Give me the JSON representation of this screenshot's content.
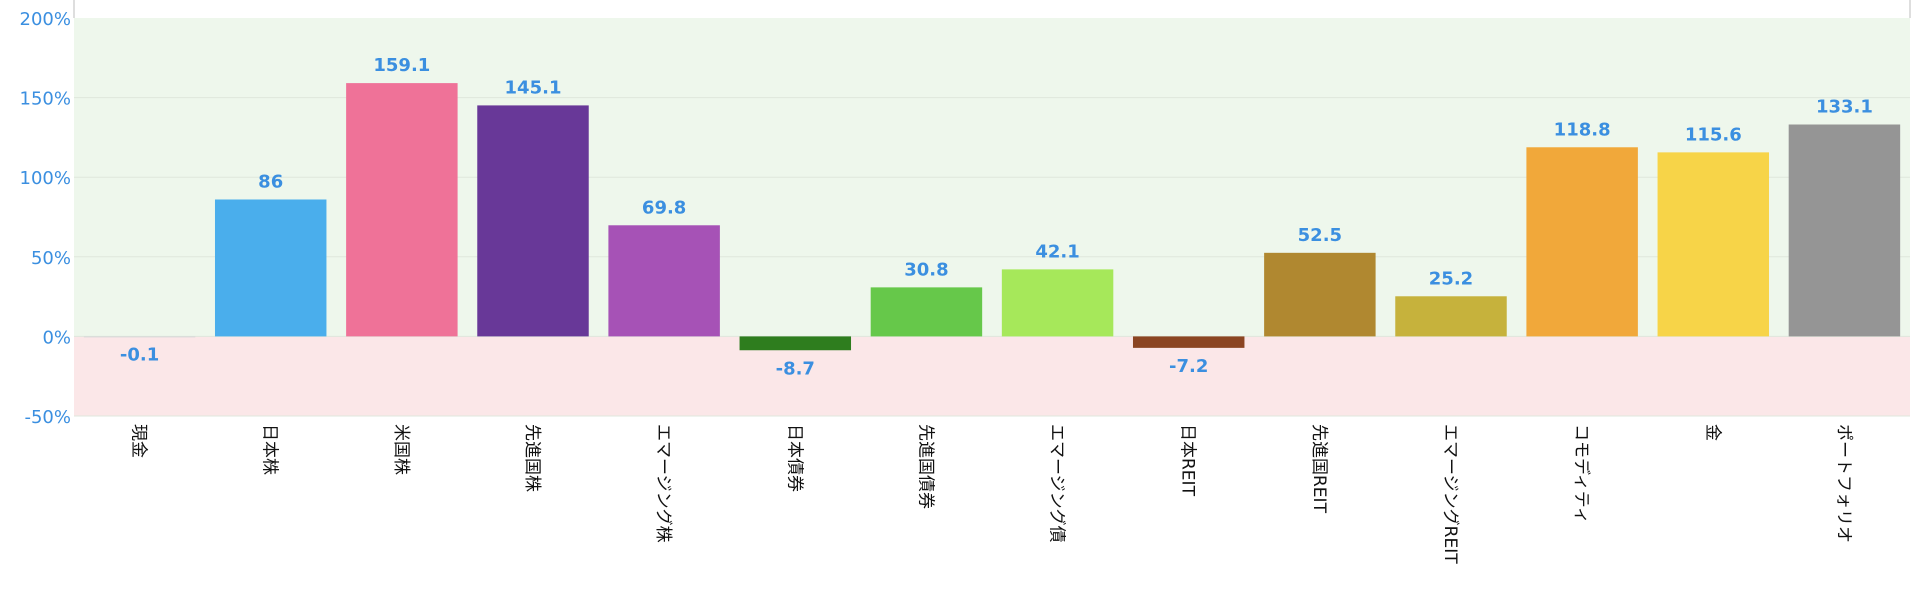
{
  "chart_data": {
    "type": "bar",
    "categories": [
      "現金",
      "日本株",
      "米国株",
      "先進国株",
      "エマージング株",
      "日本債券",
      "先進国債券",
      "エマージング債",
      "日本REIT",
      "先進国REIT",
      "エマージングREIT",
      "コモディティ",
      "金",
      "ポートフォリオ"
    ],
    "values": [
      -0.1,
      86,
      159.1,
      145.1,
      69.8,
      -8.7,
      30.8,
      42.1,
      -7.2,
      52.5,
      25.2,
      118.8,
      115.6,
      133.1
    ],
    "bar_colors": [
      "#d8d8d8",
      "#4aaeec",
      "#ef7298",
      "#683898",
      "#a652b6",
      "#2e7d1e",
      "#66c84a",
      "#a6e85a",
      "#8b4522",
      "#b08830",
      "#c6b23c",
      "#f1a83a",
      "#f7d448",
      "#959595"
    ],
    "y_ticks": [
      {
        "value": 200,
        "label": "200%"
      },
      {
        "value": 150,
        "label": "150%"
      },
      {
        "value": 100,
        "label": "100%"
      },
      {
        "value": 50,
        "label": "50%"
      },
      {
        "value": 0,
        "label": "0%"
      },
      {
        "value": -50,
        "label": "-50%"
      }
    ],
    "ylim": [
      -50,
      200
    ],
    "positive_zone_color": "#eef7ec",
    "negative_zone_color": "#fbe7e8",
    "value_label_color": "#3b8fe0",
    "title": "",
    "xlabel": "",
    "ylabel": "",
    "grid": true
  }
}
